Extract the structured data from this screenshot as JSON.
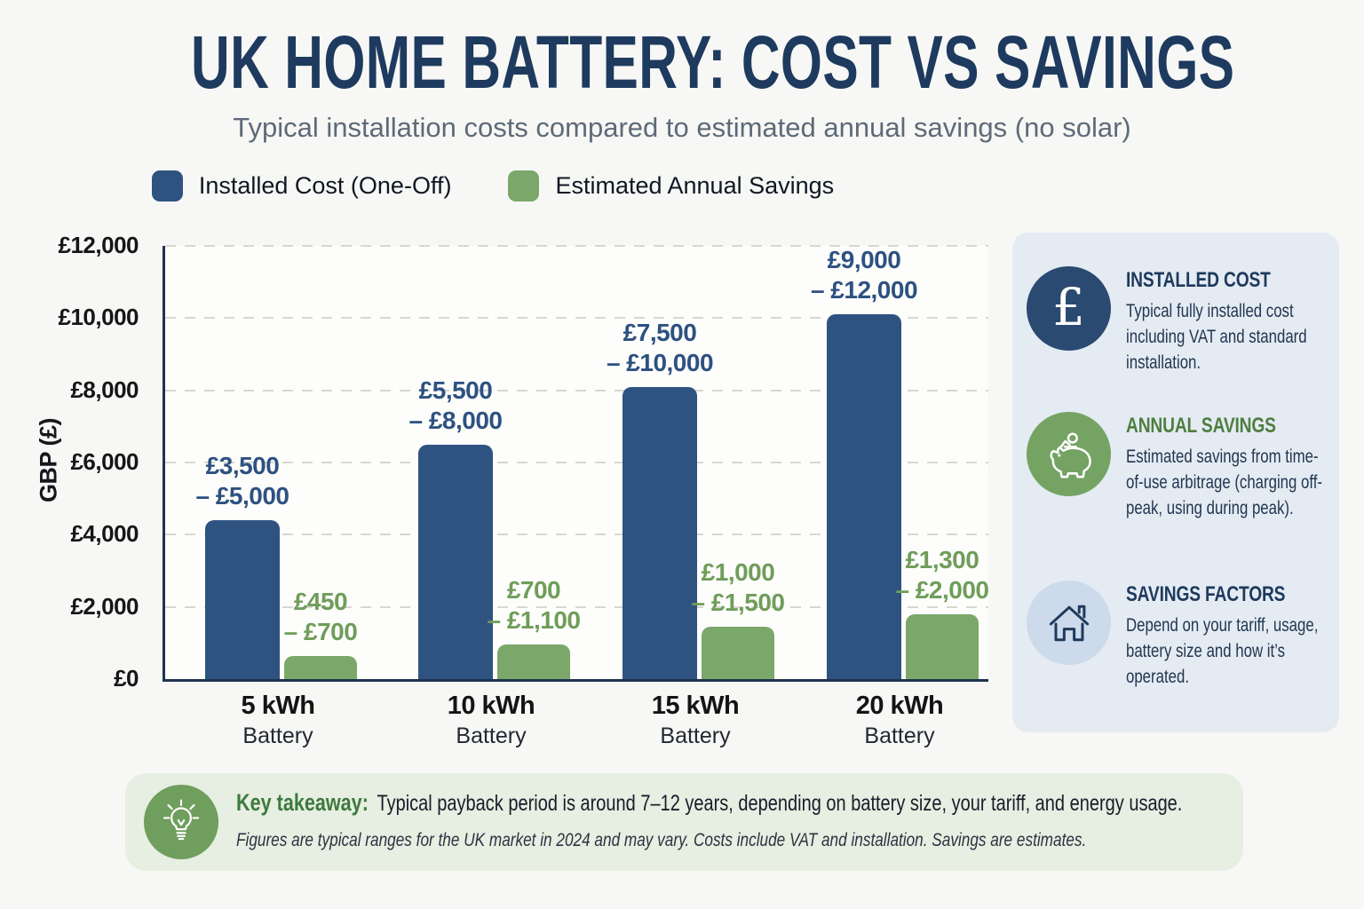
{
  "title": "UK HOME BATTERY: COST VS SAVINGS",
  "subtitle": "Typical installation costs compared to estimated annual savings (no solar)",
  "legend": [
    {
      "label": "Installed Cost (One-Off)",
      "color": "#2f5380"
    },
    {
      "label": "Estimated Annual Savings",
      "color": "#7ba86a"
    }
  ],
  "chart_data": {
    "type": "bar",
    "title": "UK Home Battery: Cost vs Savings",
    "xlabel": "",
    "ylabel": "GBP (£)",
    "ylim": [
      0,
      12000
    ],
    "grid": "horizontal-dashed",
    "legend_position": "top-center",
    "yticks": [
      {
        "label": "£0",
        "value": 0
      },
      {
        "label": "£2,000",
        "value": 2000
      },
      {
        "label": "£4,000",
        "value": 4000
      },
      {
        "label": "£6,000",
        "value": 6000
      },
      {
        "label": "£8,000",
        "value": 8000
      },
      {
        "label": "£10,000",
        "value": 10000
      },
      {
        "label": "£12,000",
        "value": 12000
      }
    ],
    "categories": [
      {
        "size": "5 kWh",
        "sub": "Battery"
      },
      {
        "size": "10 kWh",
        "sub": "Battery"
      },
      {
        "size": "15 kWh",
        "sub": "Battery"
      },
      {
        "size": "20 kWh",
        "sub": "Battery"
      }
    ],
    "series": [
      {
        "name": "Installed Cost (One-Off)",
        "color": "#2f5380",
        "label_color": "#2d5181",
        "values": [
          4400,
          6500,
          8100,
          10100
        ],
        "range_labels": [
          [
            "£3,500",
            "– £5,000"
          ],
          [
            "£5,500",
            "– £8,000"
          ],
          [
            "£7,500",
            "– £10,000"
          ],
          [
            "£9,000",
            "– £12,000"
          ]
        ]
      },
      {
        "name": "Estimated Annual Savings",
        "color": "#7ba86a",
        "label_color": "#6f9d5a",
        "values": [
          650,
          950,
          1450,
          1800
        ],
        "range_labels": [
          [
            "£450",
            "– £700"
          ],
          [
            "£700",
            "– £1,100"
          ],
          [
            "£1,000",
            "– £1,500"
          ],
          [
            "£1,300",
            "– £2,000"
          ]
        ]
      }
    ]
  },
  "sidebar": {
    "items": [
      {
        "icon": "pound-icon",
        "icon_glyph": "£",
        "title": "INSTALLED COST",
        "body": "Typical fully installed cost including VAT and standard installation."
      },
      {
        "icon": "piggy-bank-icon",
        "title": "ANNUAL SAVINGS",
        "body": "Estimated savings from time-of-use arbitrage (charging off-peak, using during peak)."
      },
      {
        "icon": "house-icon",
        "title": "SAVINGS FACTORS",
        "body": "Depend on your tariff, usage, battery size and how it’s operated."
      }
    ]
  },
  "takeaway": {
    "label": "Key takeaway:",
    "text": "Typical payback period is around 7–12 years, depending on battery size, your tariff, and energy usage.",
    "footnote": "Figures are typical ranges for the UK market in 2024 and may vary. Costs include VAT and installation. Savings are estimates."
  }
}
